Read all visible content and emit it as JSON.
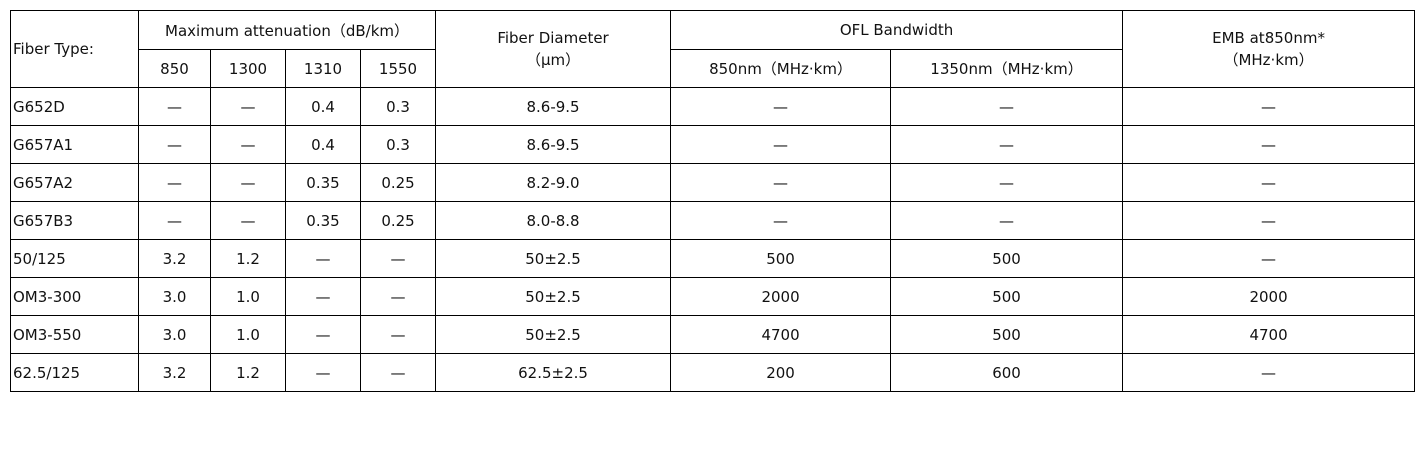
{
  "header": {
    "fiber_type": "Fiber Type:",
    "max_attenuation": "Maximum attenuation（dB/km）",
    "wavelengths": [
      "850",
      "1300",
      "1310",
      "1550"
    ],
    "fiber_diameter": [
      "Fiber Diameter",
      "（μm）"
    ],
    "ofl_bandwidth": "OFL Bandwidth",
    "ofl_columns": [
      "850nm（MHz·km）",
      "1350nm（MHz·km）"
    ],
    "emb": [
      "EMB at850nm*",
      "（MHz·km）"
    ]
  },
  "table": {
    "rows": [
      [
        "G652D",
        "—",
        "—",
        "0.4",
        "0.3",
        "8.6-9.5",
        "—",
        "—",
        "—"
      ],
      [
        "G657A1",
        "—",
        "—",
        "0.4",
        "0.3",
        "8.6-9.5",
        "—",
        "—",
        "—"
      ],
      [
        "G657A2",
        "—",
        "—",
        "0.35",
        "0.25",
        "8.2-9.0",
        "—",
        "—",
        "—"
      ],
      [
        "G657B3",
        "—",
        "—",
        "0.35",
        "0.25",
        "8.0-8.8",
        "—",
        "—",
        "—"
      ],
      [
        "50/125",
        "3.2",
        "1.2",
        "—",
        "—",
        "50±2.5",
        "500",
        "500",
        "—"
      ],
      [
        "OM3-300",
        "3.0",
        "1.0",
        "—",
        "—",
        "50±2.5",
        "2000",
        "500",
        "2000"
      ],
      [
        "OM3-550",
        "3.0",
        "1.0",
        "—",
        "—",
        "50±2.5",
        "4700",
        "500",
        "4700"
      ],
      [
        "62.5/125",
        "3.2",
        "1.2",
        "—",
        "—",
        "62.5±2.5",
        "200",
        "600",
        "—"
      ]
    ]
  }
}
